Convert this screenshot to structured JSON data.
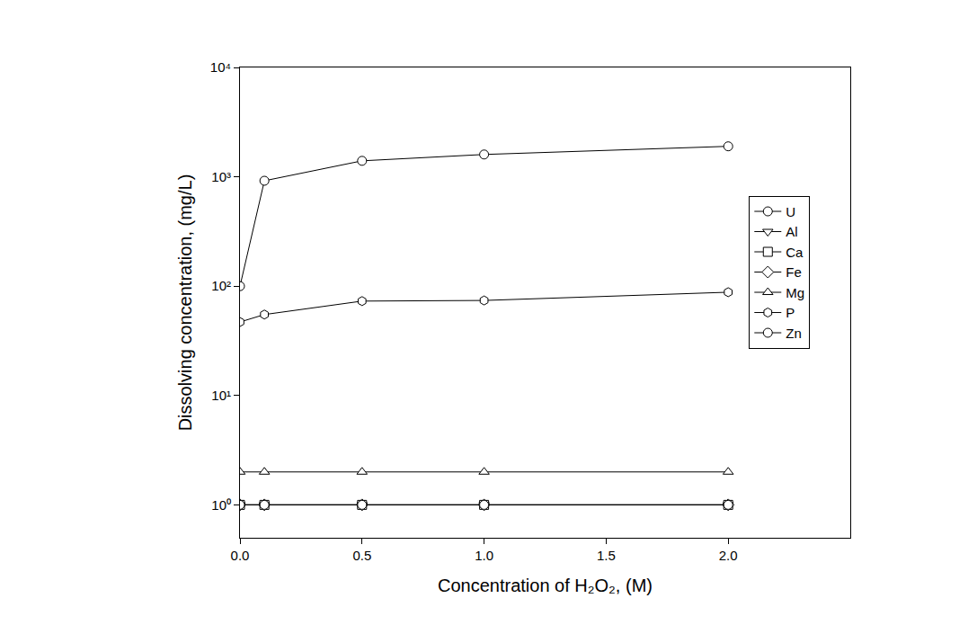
{
  "chart_data": {
    "type": "line",
    "x_label": "Concentration of H₂O₂, (M)",
    "y_label": "Dissolving concentration, (mg/L)",
    "log": "y",
    "grid": false,
    "legend": "right",
    "xlim": [
      0,
      2.5
    ],
    "xticks": [
      {
        "value": 0,
        "label": "0.0"
      },
      0.5,
      {
        "value": 1,
        "label": "1.0"
      },
      1.5,
      {
        "value": 2,
        "label": "2.0"
      }
    ],
    "ylim": [
      0.5,
      10000
    ],
    "yticks": [
      {
        "value": 1,
        "label": "10⁰"
      },
      {
        "value": 10,
        "label": "10¹"
      },
      {
        "value": 100,
        "label": "10²"
      },
      {
        "value": 1000,
        "label": "10³"
      },
      {
        "value": 10000,
        "label": "10⁴"
      }
    ],
    "x": [
      0,
      0.1,
      0.5,
      1.0,
      2.0
    ],
    "series": [
      {
        "name": "U",
        "color": "#000000",
        "marker": "circle",
        "line_style": "solid",
        "values": [
          100,
          920,
          1400,
          1600,
          1900
        ]
      },
      {
        "name": "Al",
        "color": "#000000",
        "marker": "triangle-down",
        "line_style": "solid",
        "values": [
          1,
          1,
          1,
          1,
          1
        ]
      },
      {
        "name": "Ca",
        "color": "#000000",
        "marker": "square",
        "line_style": "solid",
        "values": [
          1,
          1,
          1,
          1,
          1
        ]
      },
      {
        "name": "Fe",
        "color": "#000000",
        "marker": "diamond",
        "line_style": "solid",
        "values": [
          1,
          1,
          1,
          1,
          1
        ]
      },
      {
        "name": "Mg",
        "color": "#000000",
        "marker": "triangle-up",
        "line_style": "solid",
        "values": [
          2,
          2,
          2,
          2,
          2
        ]
      },
      {
        "name": "P",
        "color": "#000000",
        "marker": "hexagon",
        "line_style": "solid",
        "values": [
          47,
          55,
          73,
          74,
          88
        ]
      },
      {
        "name": "Zn",
        "color": "#000000",
        "marker": "circle",
        "line_style": "solid",
        "values": [
          1,
          1,
          1,
          1,
          1
        ]
      }
    ]
  }
}
